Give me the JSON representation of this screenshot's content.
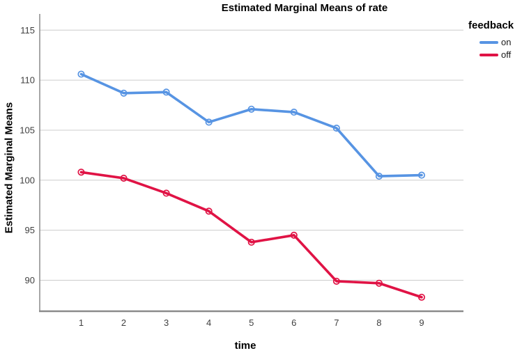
{
  "title": "Estimated Marginal Means of rate",
  "legend": {
    "title": "feedback",
    "items": [
      {
        "label": "on",
        "color": "#5794E3"
      },
      {
        "label": "off",
        "color": "#E01345"
      }
    ]
  },
  "style": {
    "grid_color": "#cccccc",
    "axis_color": "#8a8a8a",
    "tick_text_color": "#3f3f3f"
  },
  "chart_data": {
    "type": "line",
    "title": "Estimated Marginal Means of rate",
    "xlabel": "time",
    "ylabel": "Estimated Marginal Means",
    "x": [
      1,
      2,
      3,
      4,
      5,
      6,
      7,
      8,
      9
    ],
    "series": [
      {
        "name": "on",
        "color": "#5794E3",
        "values": [
          110.6,
          108.7,
          108.8,
          105.8,
          107.1,
          106.8,
          105.2,
          100.4,
          100.5
        ]
      },
      {
        "name": "off",
        "color": "#E01345",
        "values": [
          100.8,
          100.2,
          98.7,
          96.9,
          93.8,
          94.5,
          89.9,
          89.7,
          88.3
        ]
      }
    ],
    "yticks": [
      90,
      95,
      100,
      105,
      110,
      115
    ],
    "ylim": [
      86.9,
      116.62
    ],
    "xlim": [
      0.026,
      9.983
    ],
    "grid": "horizontal",
    "legend_position": "right",
    "marker": "open-circle"
  }
}
